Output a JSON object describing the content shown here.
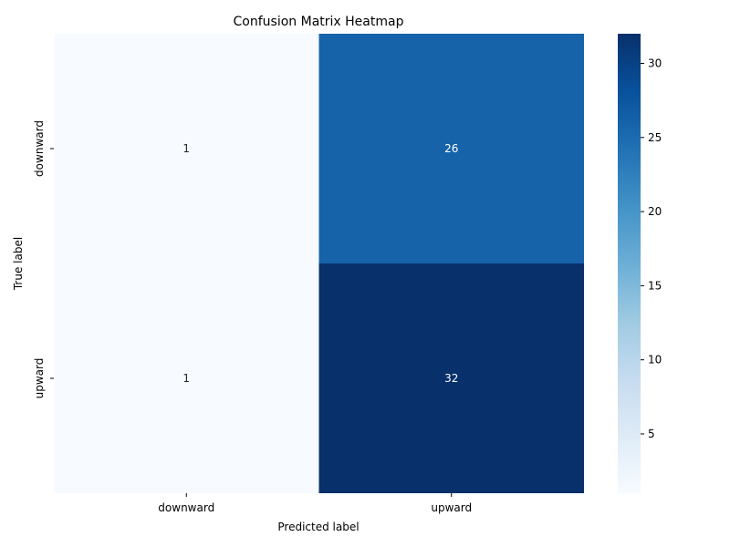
{
  "chart_data": {
    "type": "heatmap",
    "title": "Confusion Matrix Heatmap",
    "xlabel": "Predicted label",
    "ylabel": "True label",
    "x_categories": [
      "downward",
      "upward"
    ],
    "y_categories": [
      "downward",
      "upward"
    ],
    "values": [
      [
        1,
        26
      ],
      [
        1,
        32
      ]
    ],
    "colormap": "Blues",
    "colorbar": {
      "min": 1,
      "max": 32,
      "ticks": [
        5,
        10,
        15,
        20,
        25,
        30
      ]
    },
    "grid": false
  }
}
